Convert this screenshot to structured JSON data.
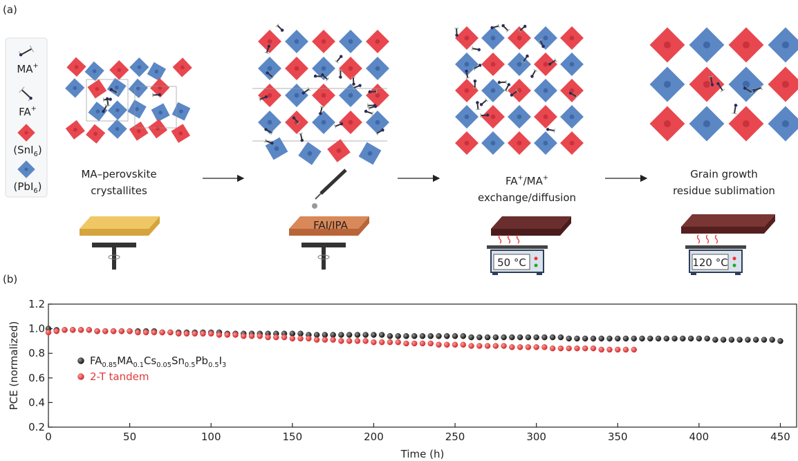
{
  "panel_a": {
    "label": "(a)",
    "legend": [
      "MA+",
      "FA+",
      "(SnI6)",
      "(PbI6)"
    ],
    "steps": [
      {
        "lines": [
          "MA–perovskite",
          "crystallites"
        ]
      },
      {
        "lines": [
          "FAI/IPA"
        ]
      },
      {
        "lines": [
          "FA+/MA+",
          "exchange/diffusion"
        ],
        "temperature": "50 °C"
      },
      {
        "lines": [
          "Grain growth",
          "residue sublimation"
        ],
        "temperature": "120 °C"
      }
    ]
  },
  "chart_data": {
    "type": "scatter",
    "panel_label": "(b)",
    "xlabel": "Time (h)",
    "ylabel": "PCE (normalized)",
    "xlim": [
      0,
      460
    ],
    "ylim": [
      0.2,
      1.2
    ],
    "xticks": [
      0,
      50,
      100,
      150,
      200,
      250,
      300,
      350,
      400,
      450
    ],
    "yticks": [
      0.2,
      0.4,
      0.6,
      0.8,
      {
        "value": 1,
        "label": "1.0"
      },
      1.2
    ],
    "series": [
      {
        "name": "FA0.85MA0.1Cs0.05Sn0.5Pb0.5I3",
        "color": "#222222",
        "x": [
          0,
          5,
          10,
          15,
          20,
          25,
          30,
          35,
          40,
          45,
          50,
          55,
          60,
          65,
          70,
          75,
          80,
          85,
          90,
          95,
          100,
          105,
          110,
          115,
          120,
          125,
          130,
          135,
          140,
          145,
          150,
          155,
          160,
          165,
          170,
          175,
          180,
          185,
          190,
          195,
          200,
          205,
          210,
          215,
          220,
          225,
          230,
          235,
          240,
          245,
          250,
          255,
          260,
          265,
          270,
          275,
          280,
          285,
          290,
          295,
          300,
          305,
          310,
          315,
          320,
          325,
          330,
          335,
          340,
          345,
          350,
          355,
          360,
          365,
          370,
          375,
          380,
          385,
          390,
          395,
          400,
          405,
          410,
          415,
          420,
          425,
          430,
          435,
          440,
          445,
          450
        ],
        "values": [
          1.0,
          0.99,
          0.99,
          0.99,
          0.99,
          0.99,
          0.98,
          0.98,
          0.98,
          0.98,
          0.98,
          0.98,
          0.98,
          0.98,
          0.97,
          0.97,
          0.97,
          0.97,
          0.97,
          0.97,
          0.97,
          0.97,
          0.96,
          0.96,
          0.96,
          0.96,
          0.96,
          0.96,
          0.96,
          0.96,
          0.96,
          0.96,
          0.95,
          0.95,
          0.95,
          0.95,
          0.95,
          0.95,
          0.95,
          0.95,
          0.95,
          0.95,
          0.94,
          0.94,
          0.94,
          0.94,
          0.94,
          0.94,
          0.94,
          0.94,
          0.94,
          0.94,
          0.93,
          0.93,
          0.93,
          0.93,
          0.93,
          0.93,
          0.93,
          0.93,
          0.93,
          0.93,
          0.93,
          0.93,
          0.92,
          0.92,
          0.92,
          0.92,
          0.92,
          0.92,
          0.92,
          0.92,
          0.92,
          0.92,
          0.92,
          0.92,
          0.92,
          0.92,
          0.92,
          0.92,
          0.92,
          0.92,
          0.91,
          0.91,
          0.91,
          0.91,
          0.91,
          0.91,
          0.91,
          0.91,
          0.9
        ]
      },
      {
        "name": "2-T tandem",
        "color": "#e03a3a",
        "x": [
          0,
          5,
          10,
          15,
          20,
          25,
          30,
          35,
          40,
          45,
          50,
          55,
          60,
          65,
          70,
          75,
          80,
          85,
          90,
          95,
          100,
          105,
          110,
          115,
          120,
          125,
          130,
          135,
          140,
          145,
          150,
          155,
          160,
          165,
          170,
          175,
          180,
          185,
          190,
          195,
          200,
          205,
          210,
          215,
          220,
          225,
          230,
          235,
          240,
          245,
          250,
          255,
          260,
          265,
          270,
          275,
          280,
          285,
          290,
          295,
          300,
          305,
          310,
          315,
          320,
          325,
          330,
          335,
          340,
          345,
          350,
          355,
          360
        ],
        "values": [
          0.97,
          0.98,
          0.99,
          0.99,
          0.99,
          0.99,
          0.98,
          0.98,
          0.98,
          0.98,
          0.98,
          0.97,
          0.97,
          0.97,
          0.97,
          0.97,
          0.96,
          0.96,
          0.96,
          0.96,
          0.96,
          0.95,
          0.95,
          0.95,
          0.94,
          0.94,
          0.94,
          0.93,
          0.93,
          0.93,
          0.92,
          0.92,
          0.92,
          0.91,
          0.91,
          0.91,
          0.9,
          0.9,
          0.9,
          0.9,
          0.89,
          0.89,
          0.89,
          0.89,
          0.88,
          0.88,
          0.88,
          0.88,
          0.87,
          0.87,
          0.87,
          0.87,
          0.86,
          0.86,
          0.86,
          0.86,
          0.86,
          0.85,
          0.85,
          0.85,
          0.85,
          0.85,
          0.84,
          0.84,
          0.84,
          0.84,
          0.84,
          0.84,
          0.83,
          0.83,
          0.83,
          0.83,
          0.83
        ]
      }
    ]
  }
}
